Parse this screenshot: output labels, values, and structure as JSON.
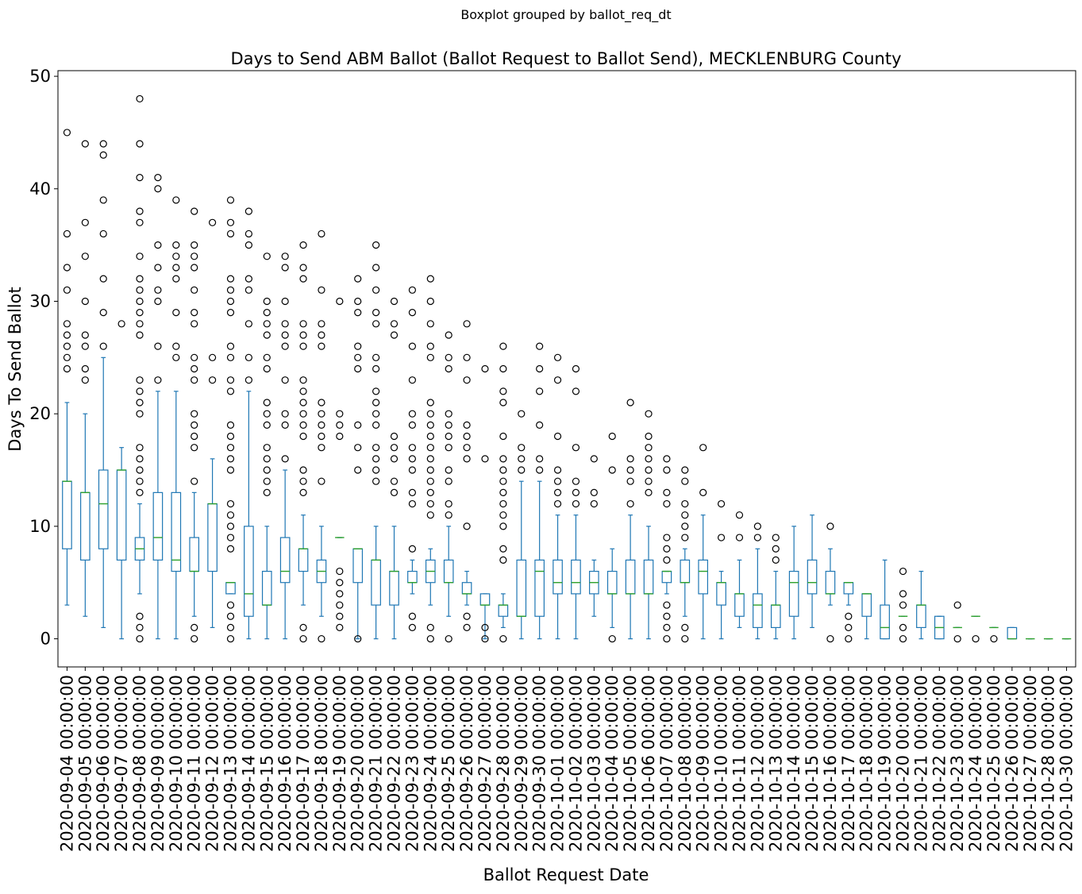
{
  "suptitle": "Boxplot grouped by ballot_req_dt",
  "chart_data": {
    "type": "boxplot",
    "title": "Days to Send ABM Ballot (Ballot Request to Ballot Send), MECKLENBURG County",
    "xlabel": "Ballot Request Date",
    "ylabel": "Days To Send Ballot",
    "ylim": [
      -2.5,
      50.5
    ],
    "yticks": [
      0,
      10,
      20,
      30,
      40,
      50
    ],
    "grid": false,
    "colors": {
      "box": "#1f77b4",
      "median": "#2ca02c",
      "flier": "#000000"
    },
    "categories": [
      "2020-09-04 00:00:00",
      "2020-09-05 00:00:00",
      "2020-09-06 00:00:00",
      "2020-09-07 00:00:00",
      "2020-09-08 00:00:00",
      "2020-09-09 00:00:00",
      "2020-09-10 00:00:00",
      "2020-09-11 00:00:00",
      "2020-09-12 00:00:00",
      "2020-09-13 00:00:00",
      "2020-09-14 00:00:00",
      "2020-09-15 00:00:00",
      "2020-09-16 00:00:00",
      "2020-09-17 00:00:00",
      "2020-09-18 00:00:00",
      "2020-09-19 00:00:00",
      "2020-09-20 00:00:00",
      "2020-09-21 00:00:00",
      "2020-09-22 00:00:00",
      "2020-09-23 00:00:00",
      "2020-09-24 00:00:00",
      "2020-09-25 00:00:00",
      "2020-09-26 00:00:00",
      "2020-09-27 00:00:00",
      "2020-09-28 00:00:00",
      "2020-09-29 00:00:00",
      "2020-09-30 00:00:00",
      "2020-10-01 00:00:00",
      "2020-10-02 00:00:00",
      "2020-10-03 00:00:00",
      "2020-10-04 00:00:00",
      "2020-10-05 00:00:00",
      "2020-10-06 00:00:00",
      "2020-10-07 00:00:00",
      "2020-10-08 00:00:00",
      "2020-10-09 00:00:00",
      "2020-10-10 00:00:00",
      "2020-10-11 00:00:00",
      "2020-10-12 00:00:00",
      "2020-10-13 00:00:00",
      "2020-10-14 00:00:00",
      "2020-10-15 00:00:00",
      "2020-10-16 00:00:00",
      "2020-10-17 00:00:00",
      "2020-10-18 00:00:00",
      "2020-10-19 00:00:00",
      "2020-10-20 00:00:00",
      "2020-10-21 00:00:00",
      "2020-10-22 00:00:00",
      "2020-10-23 00:00:00",
      "2020-10-24 00:00:00",
      "2020-10-25 00:00:00",
      "2020-10-26 00:00:00",
      "2020-10-27 00:00:00",
      "2020-10-28 00:00:00",
      "2020-10-30 00:00:00"
    ],
    "boxes": [
      {
        "whislo": 3,
        "q1": 8,
        "med": 14,
        "q3": 14,
        "whishi": 21,
        "fliers": [
          24,
          25,
          26,
          27,
          28,
          31,
          33,
          36,
          45
        ]
      },
      {
        "whislo": 2,
        "q1": 7,
        "med": 13,
        "q3": 13,
        "whishi": 20,
        "fliers": [
          23,
          24,
          26,
          27,
          30,
          34,
          37,
          44
        ]
      },
      {
        "whislo": 1,
        "q1": 8,
        "med": 12,
        "q3": 15,
        "whishi": 25,
        "fliers": [
          26,
          29,
          32,
          36,
          39,
          43,
          44
        ]
      },
      {
        "whislo": 0,
        "q1": 7,
        "med": 15,
        "q3": 15,
        "whishi": 17,
        "fliers": [
          28
        ]
      },
      {
        "whislo": 4,
        "q1": 7,
        "med": 8,
        "q3": 9,
        "whishi": 12,
        "fliers": [
          0,
          1,
          2,
          13,
          14,
          15,
          16,
          17,
          20,
          21,
          22,
          23,
          27,
          28,
          29,
          30,
          31,
          32,
          34,
          37,
          38,
          41,
          44,
          48
        ]
      },
      {
        "whislo": 0,
        "q1": 7,
        "med": 9,
        "q3": 13,
        "whishi": 22,
        "fliers": [
          23,
          26,
          30,
          31,
          33,
          35,
          40,
          41
        ]
      },
      {
        "whislo": 0,
        "q1": 6,
        "med": 7,
        "q3": 13,
        "whishi": 22,
        "fliers": [
          25,
          26,
          29,
          32,
          33,
          34,
          35,
          39
        ]
      },
      {
        "whislo": 2,
        "q1": 6,
        "med": 6,
        "q3": 9,
        "whishi": 13,
        "fliers": [
          0,
          1,
          14,
          17,
          18,
          19,
          20,
          23,
          24,
          25,
          28,
          29,
          31,
          33,
          34,
          35,
          38
        ]
      },
      {
        "whislo": 1,
        "q1": 6,
        "med": 12,
        "q3": 12,
        "whishi": 16,
        "fliers": [
          23,
          25,
          37
        ]
      },
      {
        "whislo": 4,
        "q1": 4,
        "med": 5,
        "q3": 5,
        "whishi": 5,
        "fliers": [
          0,
          1,
          2,
          3,
          8,
          9,
          10,
          11,
          12,
          15,
          16,
          17,
          18,
          19,
          22,
          23,
          25,
          26,
          29,
          30,
          31,
          32,
          36,
          37,
          39
        ]
      },
      {
        "whislo": 0,
        "q1": 2,
        "med": 4,
        "q3": 10,
        "whishi": 22,
        "fliers": [
          23,
          25,
          28,
          31,
          32,
          35,
          36,
          38
        ]
      },
      {
        "whislo": 0,
        "q1": 3,
        "med": 3,
        "q3": 6,
        "whishi": 10,
        "fliers": [
          13,
          14,
          15,
          16,
          17,
          19,
          20,
          21,
          24,
          25,
          27,
          28,
          29,
          30,
          34
        ]
      },
      {
        "whislo": 0,
        "q1": 5,
        "med": 6,
        "q3": 9,
        "whishi": 15,
        "fliers": [
          16,
          19,
          20,
          23,
          26,
          27,
          28,
          30,
          33,
          34
        ]
      },
      {
        "whislo": 3,
        "q1": 6,
        "med": 8,
        "q3": 8,
        "whishi": 11,
        "fliers": [
          0,
          1,
          13,
          14,
          15,
          18,
          19,
          20,
          21,
          22,
          23,
          26,
          27,
          28,
          32,
          33,
          35
        ]
      },
      {
        "whislo": 2,
        "q1": 5,
        "med": 6,
        "q3": 7,
        "whishi": 10,
        "fliers": [
          0,
          14,
          17,
          18,
          19,
          20,
          21,
          26,
          27,
          28,
          31,
          36
        ]
      },
      {
        "whislo": 9,
        "q1": 9,
        "med": 9,
        "q3": 9,
        "whishi": 9,
        "fliers": [
          1,
          2,
          3,
          4,
          5,
          6,
          18,
          19,
          20,
          30
        ]
      },
      {
        "whislo": 0,
        "q1": 5,
        "med": 8,
        "q3": 8,
        "whishi": 8,
        "fliers": [
          0,
          15,
          17,
          19,
          24,
          25,
          26,
          29,
          30,
          32
        ]
      },
      {
        "whislo": 0,
        "q1": 3,
        "med": 7,
        "q3": 7,
        "whishi": 10,
        "fliers": [
          14,
          15,
          16,
          17,
          19,
          20,
          21,
          22,
          24,
          25,
          28,
          29,
          31,
          33,
          35
        ]
      },
      {
        "whislo": 0,
        "q1": 3,
        "med": 6,
        "q3": 6,
        "whishi": 10,
        "fliers": [
          13,
          14,
          16,
          17,
          18,
          27,
          28,
          30
        ]
      },
      {
        "whislo": 4,
        "q1": 5,
        "med": 5,
        "q3": 6,
        "whishi": 7,
        "fliers": [
          1,
          2,
          8,
          12,
          13,
          15,
          16,
          17,
          19,
          20,
          23,
          26,
          29,
          31
        ]
      },
      {
        "whislo": 3,
        "q1": 5,
        "med": 6,
        "q3": 7,
        "whishi": 8,
        "fliers": [
          0,
          1,
          11,
          12,
          13,
          14,
          15,
          16,
          17,
          18,
          19,
          20,
          21,
          25,
          26,
          28,
          30,
          32
        ]
      },
      {
        "whislo": 2,
        "q1": 5,
        "med": 5,
        "q3": 7,
        "whishi": 10,
        "fliers": [
          0,
          11,
          12,
          14,
          15,
          17,
          18,
          19,
          20,
          24,
          25,
          27
        ]
      },
      {
        "whislo": 3,
        "q1": 4,
        "med": 4,
        "q3": 5,
        "whishi": 6,
        "fliers": [
          1,
          2,
          10,
          16,
          17,
          18,
          19,
          23,
          25,
          28
        ]
      },
      {
        "whislo": 0,
        "q1": 3,
        "med": 3,
        "q3": 4,
        "whishi": 4,
        "fliers": [
          0,
          1,
          16,
          24
        ]
      },
      {
        "whislo": 1,
        "q1": 2,
        "med": 3,
        "q3": 3,
        "whishi": 4,
        "fliers": [
          0,
          7,
          8,
          10,
          11,
          12,
          13,
          14,
          15,
          16,
          18,
          21,
          22,
          24,
          26
        ]
      },
      {
        "whislo": 0,
        "q1": 2,
        "med": 2,
        "q3": 7,
        "whishi": 14,
        "fliers": [
          15,
          16,
          17,
          20
        ]
      },
      {
        "whislo": 0,
        "q1": 2,
        "med": 6,
        "q3": 7,
        "whishi": 14,
        "fliers": [
          15,
          16,
          19,
          22,
          24,
          26
        ]
      },
      {
        "whislo": 0,
        "q1": 4,
        "med": 5,
        "q3": 7,
        "whishi": 11,
        "fliers": [
          12,
          13,
          14,
          15,
          18,
          23,
          25
        ]
      },
      {
        "whislo": 0,
        "q1": 4,
        "med": 5,
        "q3": 7,
        "whishi": 11,
        "fliers": [
          12,
          13,
          14,
          17,
          22,
          24
        ]
      },
      {
        "whislo": 2,
        "q1": 4,
        "med": 5,
        "q3": 6,
        "whishi": 7,
        "fliers": [
          12,
          13,
          16
        ]
      },
      {
        "whislo": 1,
        "q1": 4,
        "med": 4,
        "q3": 6,
        "whishi": 8,
        "fliers": [
          0,
          15,
          18
        ]
      },
      {
        "whislo": 0,
        "q1": 4,
        "med": 4,
        "q3": 7,
        "whishi": 11,
        "fliers": [
          12,
          14,
          15,
          16,
          21
        ]
      },
      {
        "whislo": 0,
        "q1": 4,
        "med": 4,
        "q3": 7,
        "whishi": 10,
        "fliers": [
          13,
          14,
          15,
          16,
          17,
          18,
          20
        ]
      },
      {
        "whislo": 4,
        "q1": 5,
        "med": 6,
        "q3": 6,
        "whishi": 6,
        "fliers": [
          0,
          1,
          2,
          3,
          7,
          8,
          9,
          12,
          13,
          15,
          16
        ]
      },
      {
        "whislo": 2,
        "q1": 5,
        "med": 5,
        "q3": 7,
        "whishi": 8,
        "fliers": [
          0,
          1,
          9,
          10,
          11,
          12,
          14,
          15
        ]
      },
      {
        "whislo": 0,
        "q1": 4,
        "med": 6,
        "q3": 7,
        "whishi": 11,
        "fliers": [
          13,
          17
        ]
      },
      {
        "whislo": 0,
        "q1": 3,
        "med": 5,
        "q3": 5,
        "whishi": 6,
        "fliers": [
          9,
          12
        ]
      },
      {
        "whislo": 1,
        "q1": 2,
        "med": 4,
        "q3": 4,
        "whishi": 7,
        "fliers": [
          9,
          11
        ]
      },
      {
        "whislo": 0,
        "q1": 1,
        "med": 3,
        "q3": 4,
        "whishi": 8,
        "fliers": [
          9,
          10
        ]
      },
      {
        "whislo": 0,
        "q1": 1,
        "med": 3,
        "q3": 3,
        "whishi": 6,
        "fliers": [
          7,
          8,
          9
        ]
      },
      {
        "whislo": 0,
        "q1": 2,
        "med": 5,
        "q3": 6,
        "whishi": 10,
        "fliers": []
      },
      {
        "whislo": 1,
        "q1": 4,
        "med": 5,
        "q3": 7,
        "whishi": 11,
        "fliers": []
      },
      {
        "whislo": 3,
        "q1": 4,
        "med": 4,
        "q3": 6,
        "whishi": 8,
        "fliers": [
          0,
          10
        ]
      },
      {
        "whislo": 3,
        "q1": 4,
        "med": 5,
        "q3": 5,
        "whishi": 5,
        "fliers": [
          0,
          1,
          2
        ]
      },
      {
        "whislo": 0,
        "q1": 2,
        "med": 4,
        "q3": 4,
        "whishi": 4,
        "fliers": []
      },
      {
        "whislo": 0,
        "q1": 0,
        "med": 1,
        "q3": 3,
        "whishi": 7,
        "fliers": []
      },
      {
        "whislo": 2,
        "q1": 2,
        "med": 2,
        "q3": 2,
        "whishi": 2,
        "fliers": [
          0,
          1,
          3,
          4,
          6
        ]
      },
      {
        "whislo": 0,
        "q1": 1,
        "med": 3,
        "q3": 3,
        "whishi": 6,
        "fliers": []
      },
      {
        "whislo": 0,
        "q1": 0,
        "med": 1,
        "q3": 2,
        "whishi": 2,
        "fliers": []
      },
      {
        "whislo": 1,
        "q1": 1,
        "med": 1,
        "q3": 1,
        "whishi": 1,
        "fliers": [
          0,
          3
        ]
      },
      {
        "whislo": 2,
        "q1": 2,
        "med": 2,
        "q3": 2,
        "whishi": 2,
        "fliers": [
          0
        ]
      },
      {
        "whislo": 1,
        "q1": 1,
        "med": 1,
        "q3": 1,
        "whishi": 1,
        "fliers": [
          0
        ]
      },
      {
        "whislo": 0,
        "q1": 0,
        "med": 0,
        "q3": 1,
        "whishi": 1,
        "fliers": []
      },
      {
        "whislo": 0,
        "q1": 0,
        "med": 0,
        "q3": 0,
        "whishi": 0,
        "fliers": []
      },
      {
        "whislo": 0,
        "q1": 0,
        "med": 0,
        "q3": 0,
        "whishi": 0,
        "fliers": []
      },
      {
        "whislo": 0,
        "q1": 0,
        "med": 0,
        "q3": 0,
        "whishi": 0,
        "fliers": []
      }
    ]
  }
}
